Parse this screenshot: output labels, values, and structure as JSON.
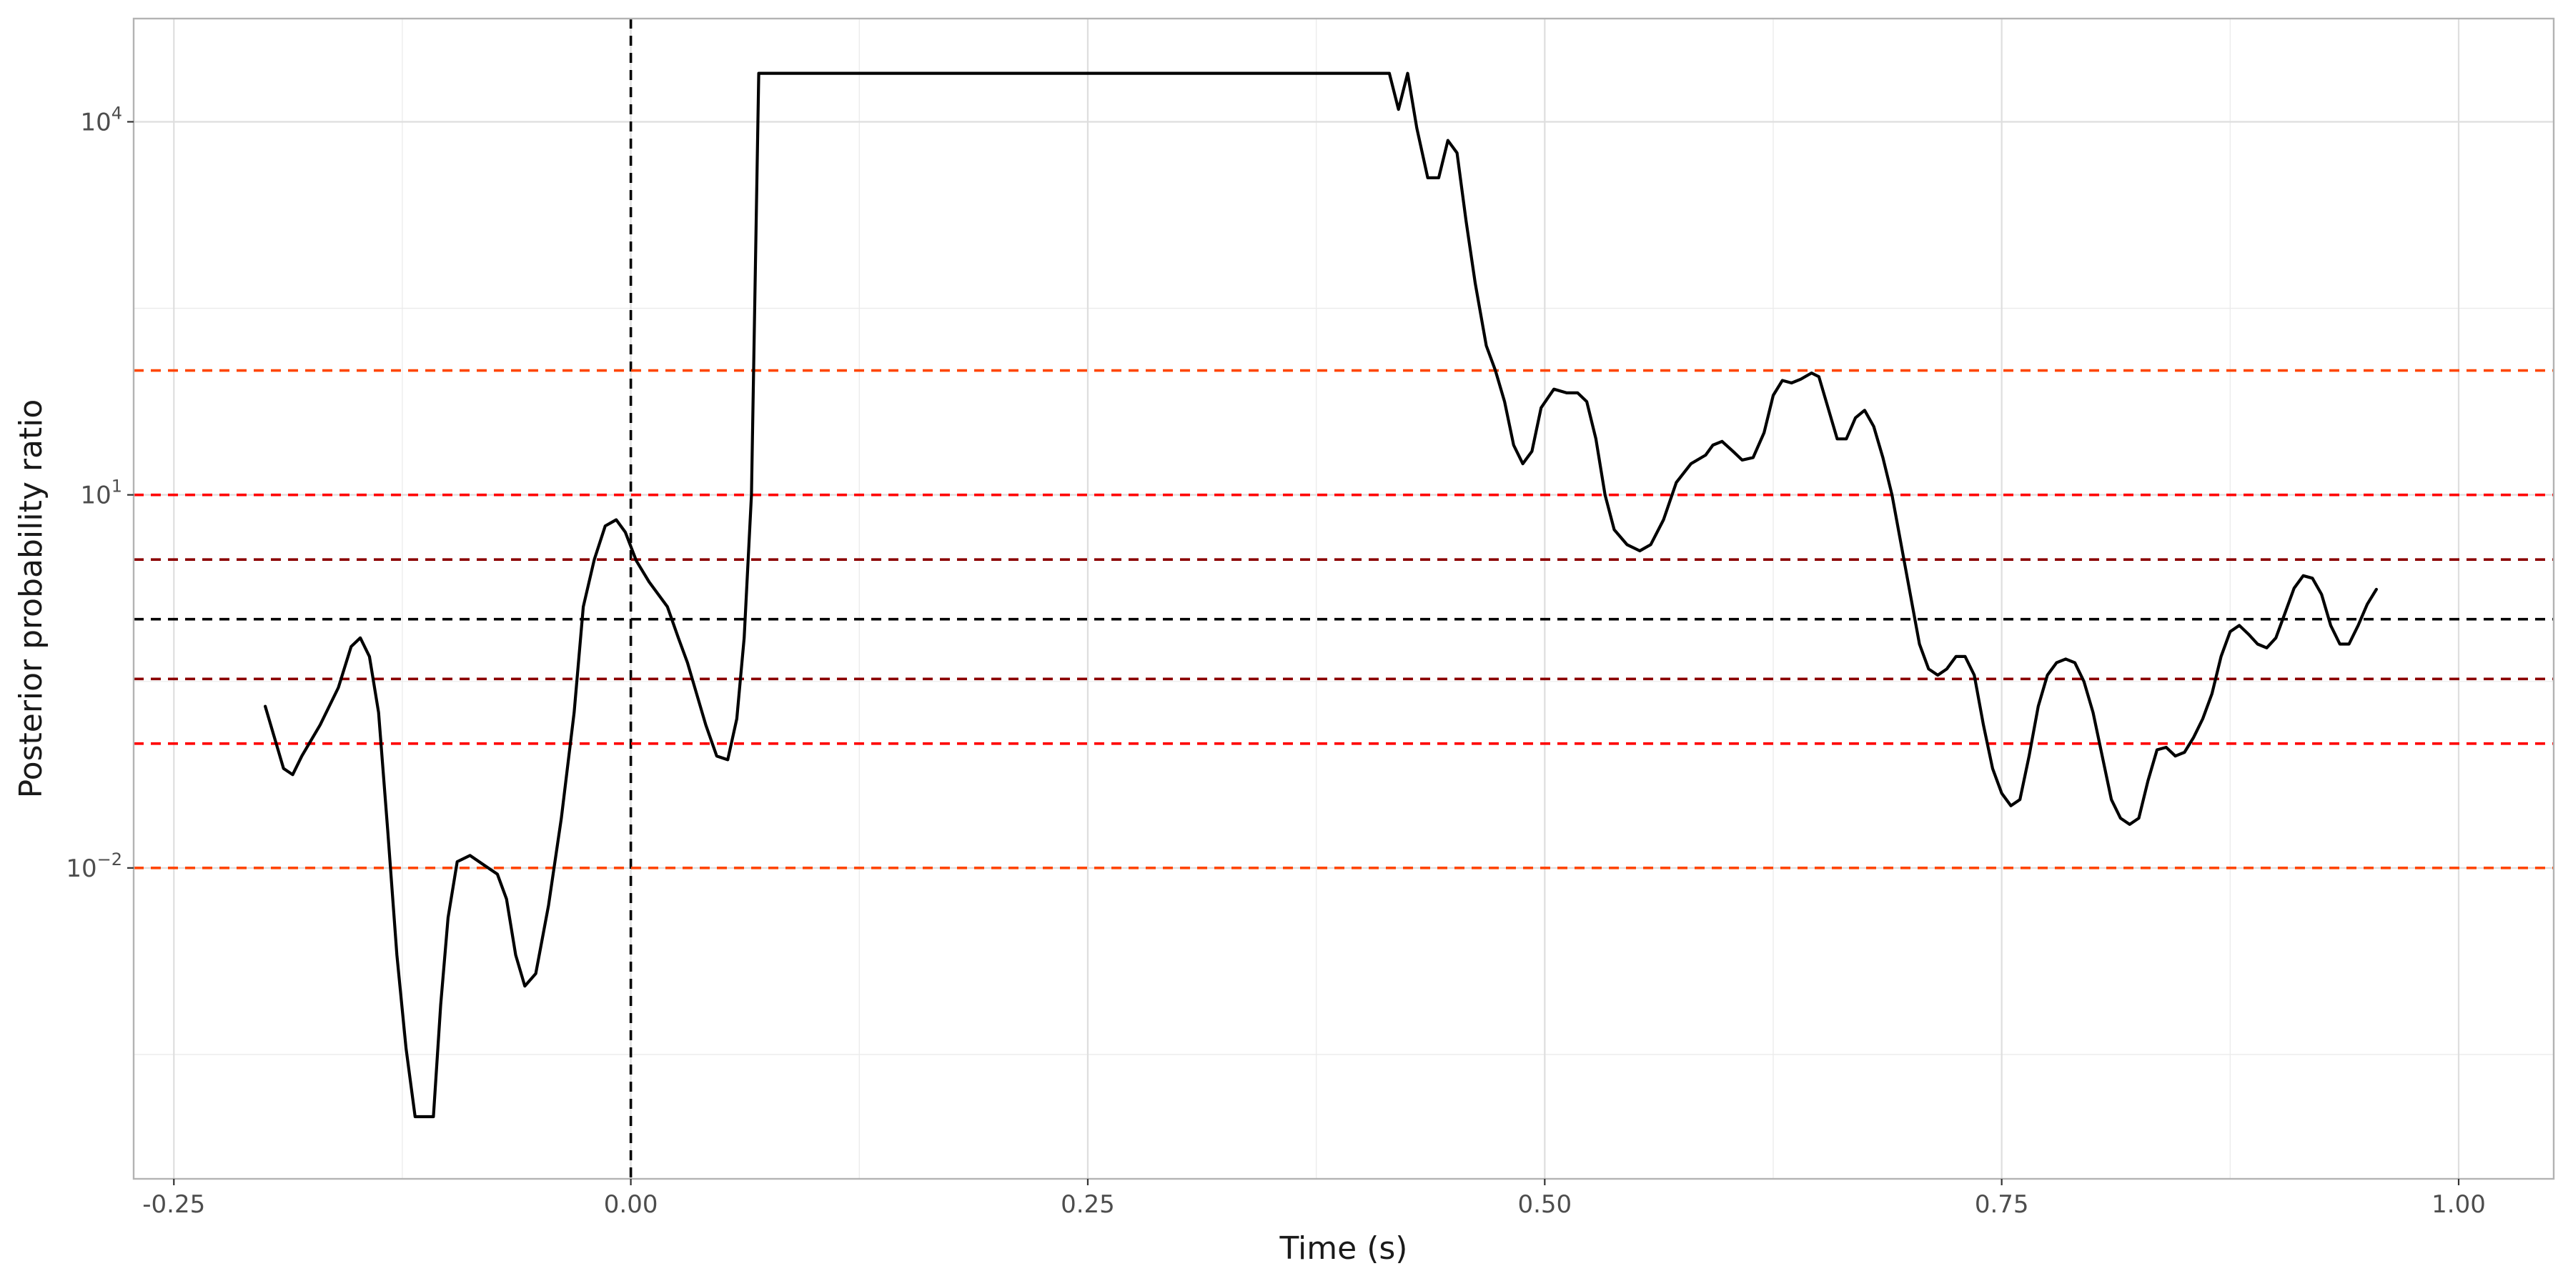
{
  "chart_data": {
    "type": "line",
    "title": "",
    "xlabel": "Time (s)",
    "ylabel": "Posterior probability ratio",
    "x_scale": "linear",
    "y_scale": "log10",
    "xlim": [
      -0.272,
      1.052
    ],
    "ylim": [
      -4.5,
      4.83
    ],
    "x_ticks": [
      {
        "value": -0.25,
        "label": "-0.25"
      },
      {
        "value": 0.0,
        "label": "0.00"
      },
      {
        "value": 0.25,
        "label": "0.25"
      },
      {
        "value": 0.5,
        "label": "0.50"
      },
      {
        "value": 0.75,
        "label": "0.75"
      },
      {
        "value": 1.0,
        "label": "1.00"
      }
    ],
    "y_ticks": [
      {
        "log10": 4,
        "base": "10",
        "exp": "4"
      },
      {
        "log10": 1,
        "base": "10",
        "exp": "1"
      },
      {
        "log10": -2,
        "base": "10",
        "exp": "−2"
      }
    ],
    "grid": true,
    "reference_lines": [
      {
        "axis": "x",
        "value": 0.0,
        "style": "dashed",
        "color": "#000000"
      },
      {
        "axis": "y",
        "log10": 2.0,
        "style": "dashed",
        "color": "#ff4500"
      },
      {
        "axis": "y",
        "log10": 1.0,
        "style": "dashed",
        "color": "#ff0000"
      },
      {
        "axis": "y",
        "log10": 0.48,
        "style": "dashed",
        "color": "#8b0000"
      },
      {
        "axis": "y",
        "log10": 0.0,
        "style": "dashed",
        "color": "#000000"
      },
      {
        "axis": "y",
        "log10": -0.48,
        "style": "dashed",
        "color": "#8b0000"
      },
      {
        "axis": "y",
        "log10": -1.0,
        "style": "dashed",
        "color": "#ff0000"
      },
      {
        "axis": "y",
        "log10": -2.0,
        "style": "dashed",
        "color": "#ff4500"
      }
    ],
    "series": [
      {
        "color": "#000000",
        "points": [
          [
            -0.2,
            -0.7
          ],
          [
            -0.19,
            -1.2
          ],
          [
            -0.185,
            -1.25
          ],
          [
            -0.18,
            -1.1
          ],
          [
            -0.17,
            -0.85
          ],
          [
            -0.16,
            -0.55
          ],
          [
            -0.153,
            -0.22
          ],
          [
            -0.148,
            -0.15
          ],
          [
            -0.143,
            -0.3
          ],
          [
            -0.138,
            -0.75
          ],
          [
            -0.133,
            -1.7
          ],
          [
            -0.128,
            -2.7
          ],
          [
            -0.123,
            -3.45
          ],
          [
            -0.118,
            -4.0
          ],
          [
            -0.108,
            -4.0
          ],
          [
            -0.104,
            -3.1
          ],
          [
            -0.1,
            -2.4
          ],
          [
            -0.095,
            -1.95
          ],
          [
            -0.088,
            -1.9
          ],
          [
            -0.08,
            -1.98
          ],
          [
            -0.073,
            -2.05
          ],
          [
            -0.068,
            -2.25
          ],
          [
            -0.063,
            -2.7
          ],
          [
            -0.058,
            -2.95
          ],
          [
            -0.052,
            -2.85
          ],
          [
            -0.045,
            -2.3
          ],
          [
            -0.038,
            -1.6
          ],
          [
            -0.031,
            -0.75
          ],
          [
            -0.026,
            0.1
          ],
          [
            -0.02,
            0.48
          ],
          [
            -0.014,
            0.75
          ],
          [
            -0.008,
            0.8
          ],
          [
            -0.003,
            0.7
          ],
          [
            0.003,
            0.47
          ],
          [
            0.01,
            0.3
          ],
          [
            0.02,
            0.1
          ],
          [
            0.026,
            -0.15
          ],
          [
            0.031,
            -0.35
          ],
          [
            0.036,
            -0.6
          ],
          [
            0.041,
            -0.85
          ],
          [
            0.047,
            -1.1
          ],
          [
            0.053,
            -1.13
          ],
          [
            0.058,
            -0.8
          ],
          [
            0.062,
            -0.15
          ],
          [
            0.066,
            1.0
          ],
          [
            0.07,
            4.39
          ],
          [
            0.415,
            4.39
          ],
          [
            0.42,
            4.1
          ],
          [
            0.425,
            4.39
          ],
          [
            0.43,
            3.95
          ],
          [
            0.436,
            3.55
          ],
          [
            0.442,
            3.55
          ],
          [
            0.447,
            3.85
          ],
          [
            0.452,
            3.75
          ],
          [
            0.457,
            3.2
          ],
          [
            0.462,
            2.7
          ],
          [
            0.468,
            2.2
          ],
          [
            0.473,
            2.0
          ],
          [
            0.478,
            1.75
          ],
          [
            0.483,
            1.4
          ],
          [
            0.488,
            1.25
          ],
          [
            0.493,
            1.35
          ],
          [
            0.498,
            1.7
          ],
          [
            0.505,
            1.85
          ],
          [
            0.512,
            1.82
          ],
          [
            0.518,
            1.82
          ],
          [
            0.523,
            1.75
          ],
          [
            0.528,
            1.45
          ],
          [
            0.533,
            1.0
          ],
          [
            0.538,
            0.72
          ],
          [
            0.545,
            0.6
          ],
          [
            0.552,
            0.55
          ],
          [
            0.558,
            0.6
          ],
          [
            0.565,
            0.8
          ],
          [
            0.572,
            1.1
          ],
          [
            0.58,
            1.25
          ],
          [
            0.588,
            1.32
          ],
          [
            0.592,
            1.4
          ],
          [
            0.597,
            1.43
          ],
          [
            0.603,
            1.35
          ],
          [
            0.608,
            1.28
          ],
          [
            0.614,
            1.3
          ],
          [
            0.62,
            1.5
          ],
          [
            0.625,
            1.8
          ],
          [
            0.63,
            1.92
          ],
          [
            0.635,
            1.9
          ],
          [
            0.64,
            1.93
          ],
          [
            0.646,
            1.98
          ],
          [
            0.65,
            1.95
          ],
          [
            0.655,
            1.7
          ],
          [
            0.66,
            1.45
          ],
          [
            0.665,
            1.45
          ],
          [
            0.67,
            1.62
          ],
          [
            0.675,
            1.68
          ],
          [
            0.68,
            1.55
          ],
          [
            0.685,
            1.3
          ],
          [
            0.69,
            1.0
          ],
          [
            0.695,
            0.6
          ],
          [
            0.7,
            0.2
          ],
          [
            0.705,
            -0.2
          ],
          [
            0.71,
            -0.4
          ],
          [
            0.715,
            -0.45
          ],
          [
            0.72,
            -0.4
          ],
          [
            0.725,
            -0.3
          ],
          [
            0.73,
            -0.3
          ],
          [
            0.735,
            -0.45
          ],
          [
            0.74,
            -0.85
          ],
          [
            0.745,
            -1.2
          ],
          [
            0.75,
            -1.4
          ],
          [
            0.755,
            -1.5
          ],
          [
            0.76,
            -1.45
          ],
          [
            0.765,
            -1.1
          ],
          [
            0.77,
            -0.7
          ],
          [
            0.775,
            -0.45
          ],
          [
            0.78,
            -0.35
          ],
          [
            0.785,
            -0.32
          ],
          [
            0.79,
            -0.35
          ],
          [
            0.795,
            -0.5
          ],
          [
            0.8,
            -0.75
          ],
          [
            0.805,
            -1.1
          ],
          [
            0.81,
            -1.45
          ],
          [
            0.815,
            -1.6
          ],
          [
            0.82,
            -1.65
          ],
          [
            0.825,
            -1.6
          ],
          [
            0.83,
            -1.3
          ],
          [
            0.835,
            -1.05
          ],
          [
            0.84,
            -1.03
          ],
          [
            0.845,
            -1.1
          ],
          [
            0.85,
            -1.07
          ],
          [
            0.855,
            -0.95
          ],
          [
            0.86,
            -0.8
          ],
          [
            0.865,
            -0.6
          ],
          [
            0.87,
            -0.3
          ],
          [
            0.875,
            -0.1
          ],
          [
            0.88,
            -0.05
          ],
          [
            0.885,
            -0.12
          ],
          [
            0.89,
            -0.2
          ],
          [
            0.895,
            -0.23
          ],
          [
            0.9,
            -0.15
          ],
          [
            0.905,
            0.05
          ],
          [
            0.91,
            0.25
          ],
          [
            0.915,
            0.35
          ],
          [
            0.92,
            0.33
          ],
          [
            0.925,
            0.2
          ],
          [
            0.93,
            -0.05
          ],
          [
            0.935,
            -0.2
          ],
          [
            0.94,
            -0.2
          ],
          [
            0.945,
            -0.05
          ],
          [
            0.95,
            0.12
          ],
          [
            0.955,
            0.24
          ]
        ]
      }
    ]
  }
}
